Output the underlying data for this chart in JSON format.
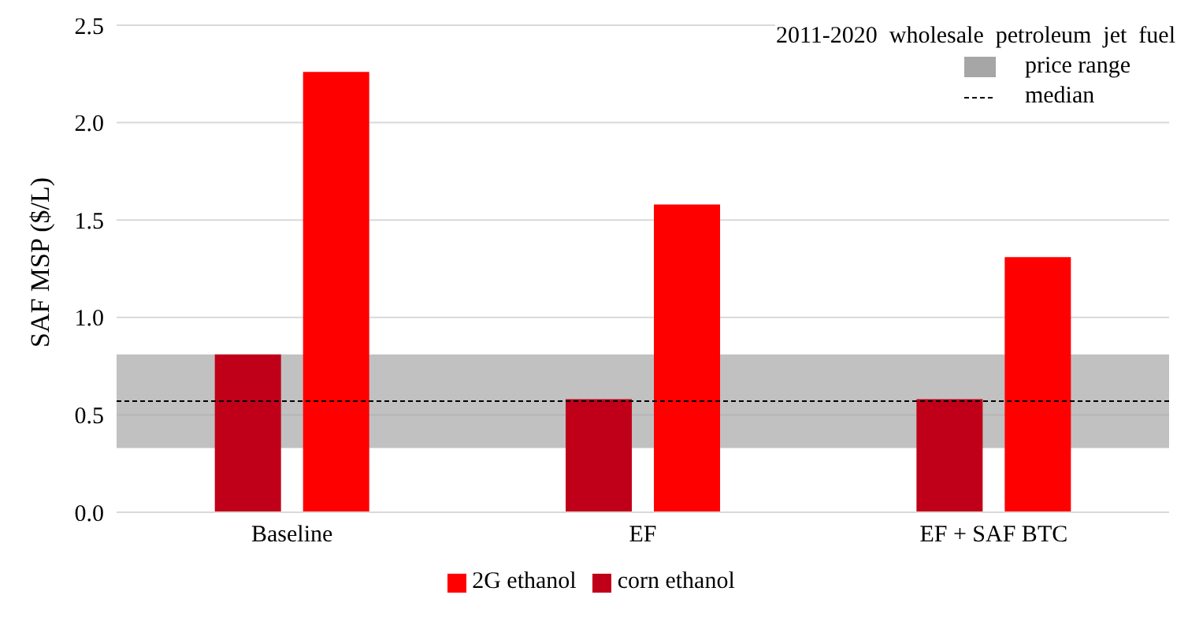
{
  "chart_data": {
    "type": "bar",
    "ylabel": "SAF MSP ($/L)",
    "categories": [
      "Baseline",
      "EF",
      "EF + SAF BTC"
    ],
    "series": [
      {
        "name": "corn ethanol",
        "color": "#c00018",
        "values": [
          0.81,
          0.58,
          0.58
        ]
      },
      {
        "name": "2G ethanol",
        "color": "#ff0000",
        "values": [
          2.26,
          1.58,
          1.31
        ]
      }
    ],
    "ylim": [
      0,
      2.5
    ],
    "yticks": [
      {
        "value": 0,
        "label": "0.0"
      },
      {
        "value": 0.5,
        "label": "0.5"
      },
      {
        "value": 1,
        "label": "1.0"
      },
      {
        "value": 1.5,
        "label": "1.5"
      },
      {
        "value": 2,
        "label": "2.0"
      },
      {
        "value": 2.5,
        "label": "2.5"
      }
    ],
    "grid": "y",
    "legend": "bottom",
    "legend_title": "2011-2020  wholesale  petroleum  jet  fuel",
    "bands": [
      {
        "axis": "y",
        "from": 0.33,
        "to": 0.81,
        "label": "price range",
        "color": "#a6a6a6"
      }
    ],
    "ref_lines": [
      {
        "axis": "y",
        "value": 0.57,
        "label": "median",
        "color": "#000000",
        "line_style": "dashed"
      }
    ]
  }
}
